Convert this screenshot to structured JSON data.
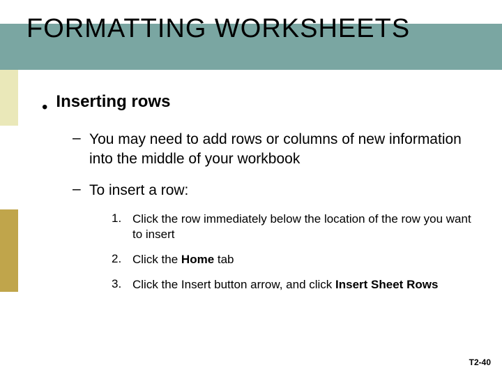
{
  "title": {
    "text": "FORMATTING WORKSHEETS",
    "font_size": 38,
    "font_weight": "400",
    "color": "#000000",
    "band_color": "#7aa6a2"
  },
  "accents": {
    "top_color": "#eae8b9",
    "bottom_color": "#c0a54b"
  },
  "content": {
    "level1": {
      "bullet": "•",
      "text": "Inserting rows",
      "font_size": 24,
      "font_weight": "700",
      "color": "#000000"
    },
    "level2_items": [
      {
        "dash": "–",
        "text": "You may need to add rows or columns of new information into the middle of your workbook",
        "font_size": 21,
        "color": "#000000"
      },
      {
        "dash": "–",
        "text": "To insert a row:",
        "font_size": 21,
        "color": "#000000"
      }
    ],
    "level3_items": [
      {
        "num": "1.",
        "pre": "Click the row immediately below the location of the row you want to insert",
        "bold": "",
        "post": "",
        "font_size": 17,
        "color": "#000000"
      },
      {
        "num": "2.",
        "pre": "Click the ",
        "bold": "Home",
        "post": " tab",
        "font_size": 17,
        "color": "#000000"
      },
      {
        "num": "3.",
        "pre": "Click the Insert button arrow, and click ",
        "bold": "Insert Sheet Rows",
        "post": "",
        "font_size": 17,
        "color": "#000000"
      }
    ]
  },
  "slide_number": {
    "text": "T2-40",
    "font_size": 12,
    "font_weight": "700",
    "color": "#000000"
  }
}
